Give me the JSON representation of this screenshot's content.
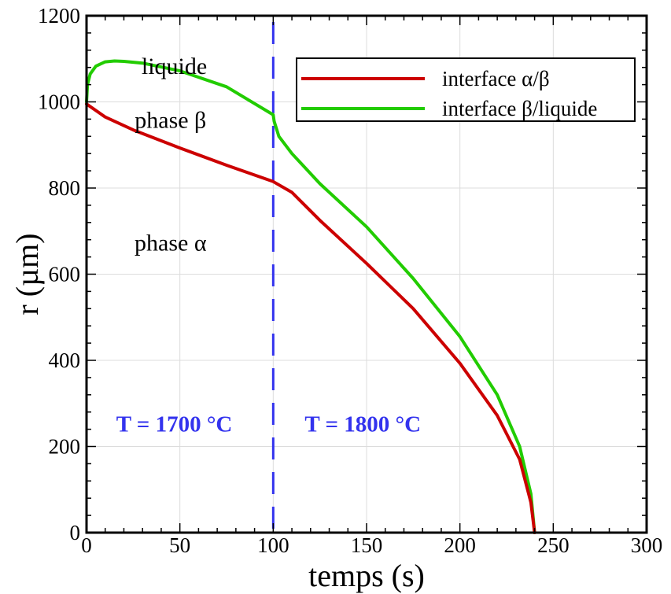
{
  "chart_data": {
    "type": "line",
    "xlabel": "temps (s)",
    "ylabel": "r (µm)",
    "xlim": [
      0,
      300
    ],
    "ylim": [
      0,
      1200
    ],
    "xticks": [
      0,
      50,
      100,
      150,
      200,
      250,
      300
    ],
    "yticks": [
      0,
      200,
      400,
      600,
      800,
      1000,
      1200
    ],
    "grid": true,
    "legend_position": "top-right",
    "series": [
      {
        "name": "interface α/β",
        "color": "#cc0000",
        "x": [
          0,
          10,
          25,
          50,
          75,
          100,
          110,
          125,
          150,
          175,
          200,
          220,
          232,
          238,
          240
        ],
        "y": [
          995,
          965,
          935,
          893,
          853,
          815,
          790,
          725,
          625,
          520,
          393,
          272,
          170,
          70,
          0
        ]
      },
      {
        "name": "interface β/liquide",
        "color": "#22cc00",
        "x": [
          0,
          0.5,
          2,
          5,
          10,
          15,
          20,
          30,
          50,
          75,
          100,
          100.5,
          103,
          110,
          125,
          150,
          175,
          200,
          220,
          232,
          238,
          240
        ],
        "y": [
          1000,
          1040,
          1065,
          1083,
          1093,
          1095,
          1094,
          1090,
          1072,
          1035,
          970,
          955,
          920,
          880,
          810,
          710,
          590,
          455,
          320,
          200,
          90,
          0
        ]
      }
    ],
    "vline": {
      "x": 100,
      "color": "#3333ee",
      "style": "dashed"
    },
    "annotations": [
      {
        "text": "liquide",
        "x": 47,
        "y": 1065,
        "color": "#000000",
        "bold": false
      },
      {
        "text": "phase β",
        "x": 45,
        "y": 940,
        "color": "#000000",
        "bold": false
      },
      {
        "text": "phase α",
        "x": 45,
        "y": 655,
        "color": "#000000",
        "bold": false
      },
      {
        "text": "T = 1700 °C",
        "x": 47,
        "y": 235,
        "color": "#3333ee",
        "bold": true
      },
      {
        "text": "T = 1800 °C",
        "x": 148,
        "y": 235,
        "color": "#3333ee",
        "bold": true
      }
    ]
  }
}
